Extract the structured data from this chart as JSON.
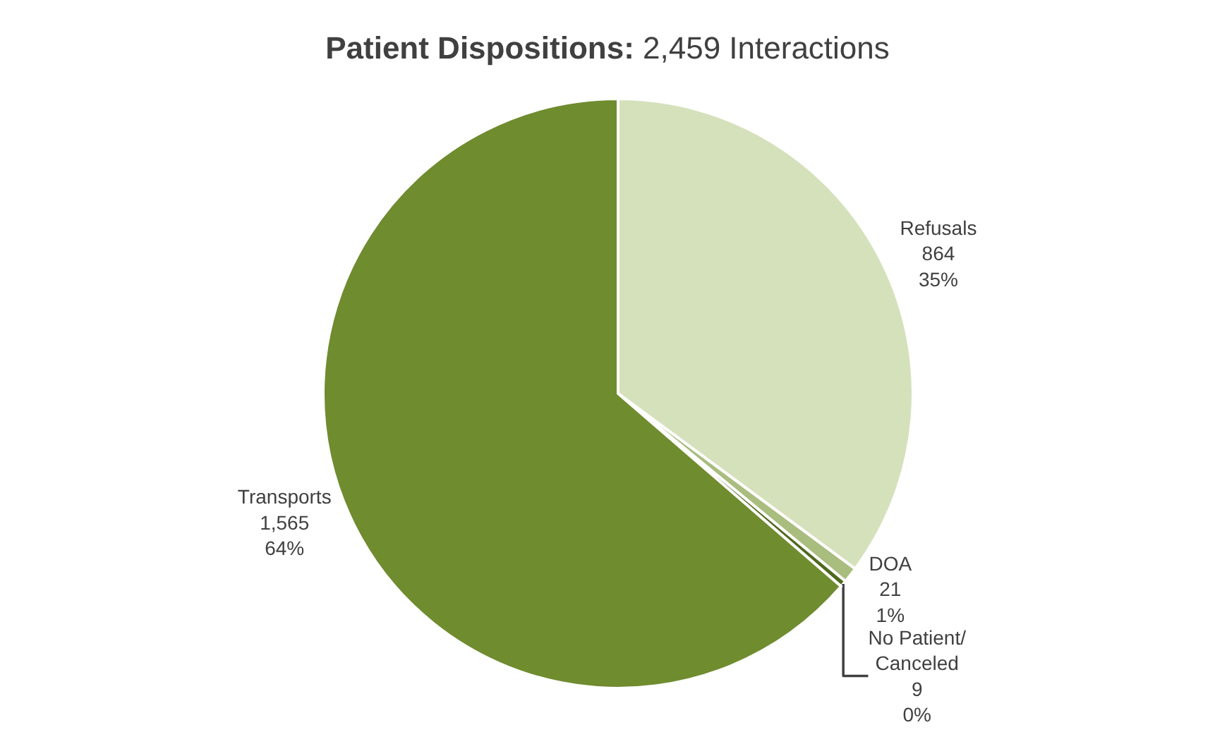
{
  "chart_data": {
    "type": "pie",
    "title": "Patient Dispositions: 2,459 Interactions",
    "categories": [
      "Refusals",
      "DOA",
      "No Patient/\nCanceled",
      "Transports"
    ],
    "values": [
      864,
      21,
      9,
      1565
    ],
    "value_labels": [
      "864\n35%",
      "21\n1%",
      "9\n0%",
      "1,565\n64%"
    ],
    "colors": [
      "#d5e1bb",
      "#a9bd7e",
      "#4e6a1d",
      "#6f8c2f"
    ],
    "legend": false
  }
}
